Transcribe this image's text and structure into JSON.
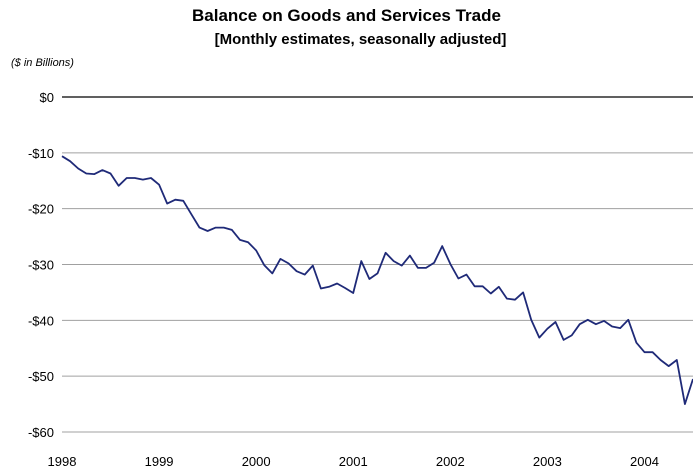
{
  "chart_data": {
    "type": "line",
    "title": "Balance on Goods and Services Trade",
    "subtitle": "[Monthly estimates, seasonally adjusted]",
    "units_label": "($ in Billions)",
    "ylim": [
      -60,
      0
    ],
    "yticks": [
      0,
      -10,
      -20,
      -30,
      -40,
      -50,
      -60
    ],
    "ytick_labels": [
      "$0",
      "-$10",
      "-$20",
      "-$30",
      "-$40",
      "-$50",
      "-$60"
    ],
    "xlim": [
      "1998-01",
      "2004-07"
    ],
    "xtick_labels": [
      "1998",
      "1999",
      "2000",
      "2001",
      "2002",
      "2003",
      "2004"
    ],
    "grid": true,
    "line_color": "#1f2a78",
    "series": [
      {
        "x": [
          "1998-01",
          "1998-02",
          "1998-03",
          "1998-04",
          "1998-05",
          "1998-06",
          "1998-07",
          "1998-08",
          "1998-09",
          "1998-10",
          "1998-11",
          "1998-12",
          "1999-01",
          "1999-02",
          "1999-03",
          "1999-04",
          "1999-05",
          "1999-06",
          "1999-07",
          "1999-08",
          "1999-09",
          "1999-10",
          "1999-11",
          "1999-12",
          "2000-01",
          "2000-02",
          "2000-03",
          "2000-04",
          "2000-05",
          "2000-06",
          "2000-07",
          "2000-08",
          "2000-09",
          "2000-10",
          "2000-11",
          "2000-12",
          "2001-01",
          "2001-02",
          "2001-03",
          "2001-04",
          "2001-05",
          "2001-06",
          "2001-07",
          "2001-08",
          "2001-09",
          "2001-10",
          "2001-11",
          "2001-12",
          "2002-01",
          "2002-02",
          "2002-03",
          "2002-04",
          "2002-05",
          "2002-06",
          "2002-07",
          "2002-08",
          "2002-09",
          "2002-10",
          "2002-11",
          "2002-12",
          "2003-01",
          "2003-02",
          "2003-03",
          "2003-04",
          "2003-05",
          "2003-06",
          "2003-07",
          "2003-08",
          "2003-09",
          "2003-10",
          "2003-11",
          "2003-12",
          "2004-01",
          "2004-02",
          "2004-03",
          "2004-04",
          "2004-05",
          "2004-06",
          "2004-07"
        ],
        "values": [
          -10.6,
          -11.5,
          -12.8,
          -13.7,
          -13.8,
          -13.1,
          -13.7,
          -15.9,
          -14.5,
          -14.5,
          -14.8,
          -14.5,
          -15.7,
          -19.1,
          -18.4,
          -18.6,
          -21.0,
          -23.4,
          -24.0,
          -23.4,
          -23.4,
          -23.8,
          -25.6,
          -26.0,
          -27.5,
          -30.1,
          -31.6,
          -29.0,
          -29.8,
          -31.2,
          -31.8,
          -30.2,
          -34.3,
          -34.0,
          -33.4,
          -34.2,
          -35.1,
          -29.4,
          -32.6,
          -31.6,
          -27.9,
          -29.4,
          -30.2,
          -28.4,
          -30.6,
          -30.6,
          -29.7,
          -26.7,
          -29.9,
          -32.5,
          -31.8,
          -33.9,
          -33.9,
          -35.2,
          -34.0,
          -36.1,
          -36.3,
          -35.0,
          -39.9,
          -43.1,
          -41.5,
          -40.3,
          -43.5,
          -42.7,
          -40.7,
          -39.9,
          -40.7,
          -40.1,
          -41.1,
          -41.4,
          -39.9,
          -44.0,
          -45.7,
          -45.7,
          -47.1,
          -48.2,
          -47.1,
          -55.0,
          -50.5
        ]
      }
    ]
  }
}
